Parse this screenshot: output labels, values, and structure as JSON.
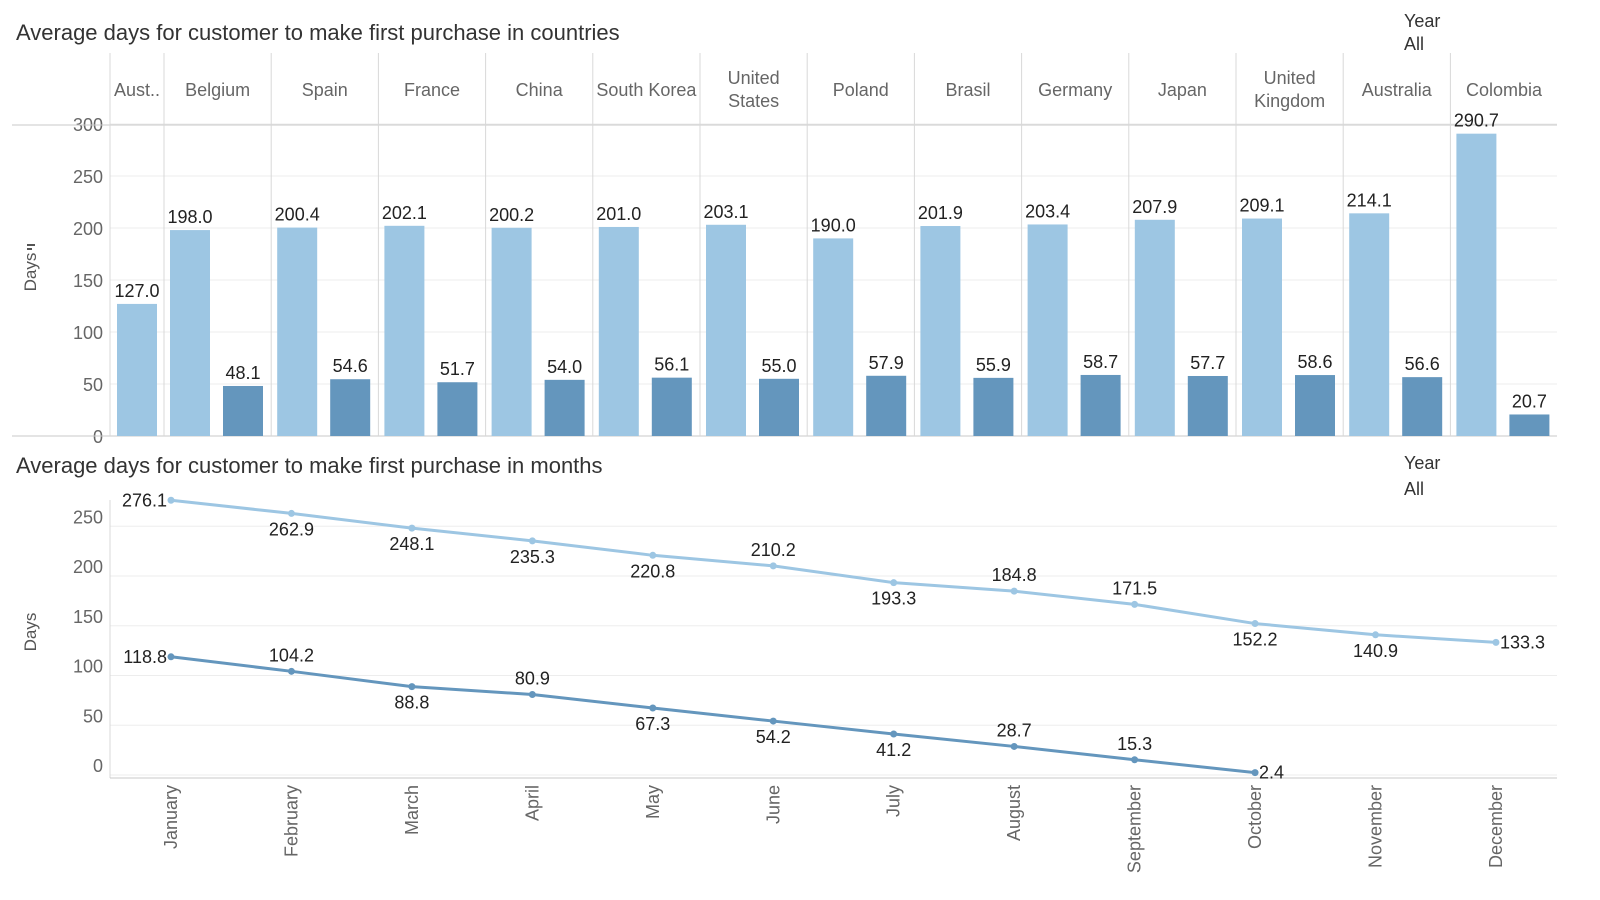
{
  "top_chart": {
    "title": "Average days for customer to make first purchase in countries",
    "filter": {
      "label": "Year",
      "value": "All"
    },
    "ylabel": "Days",
    "colors": {
      "light": "#9dc6e3",
      "dark": "#6496bd"
    }
  },
  "bottom_chart": {
    "title": "Average days for customer to make first purchase in months",
    "filter": {
      "label": "Year",
      "value": "All"
    },
    "ylabel": "Days",
    "colors": {
      "light": "#9dc6e3",
      "dark": "#6496bd"
    }
  },
  "chart_data": [
    {
      "type": "bar",
      "title": "Average days for customer to make first purchase in countries",
      "ylabel": "Days",
      "ylim": [
        0,
        300
      ],
      "yticks": [
        0,
        50,
        100,
        150,
        200,
        250,
        300
      ],
      "grid": true,
      "categories": [
        "Aust..",
        "Belgium",
        "Spain",
        "France",
        "China",
        "South Korea",
        "United States",
        "Poland",
        "Brasil",
        "Germany",
        "Japan",
        "United Kingdom",
        "Australia",
        "Colombia"
      ],
      "series": [
        {
          "values": [
            127.0,
            198.0,
            200.4,
            202.1,
            200.2,
            201.0,
            203.1,
            190.0,
            201.9,
            203.4,
            207.9,
            209.1,
            214.1,
            290.7
          ]
        },
        {
          "values": [
            null,
            48.1,
            54.6,
            51.7,
            54.0,
            56.1,
            55.0,
            57.9,
            55.9,
            58.7,
            57.7,
            58.6,
            56.6,
            20.7
          ]
        }
      ]
    },
    {
      "type": "line",
      "title": "Average days for customer to make first purchase in months",
      "ylabel": "Days",
      "ylim": [
        0,
        250
      ],
      "yticks": [
        0,
        50,
        100,
        150,
        200,
        250
      ],
      "grid": true,
      "x": [
        "January",
        "February",
        "March",
        "April",
        "May",
        "June",
        "July",
        "August",
        "September",
        "October",
        "November",
        "December"
      ],
      "series": [
        {
          "values": [
            276.1,
            262.9,
            248.1,
            235.3,
            220.8,
            210.2,
            193.3,
            184.8,
            171.5,
            152.2,
            140.9,
            133.3
          ]
        },
        {
          "values": [
            118.8,
            104.2,
            88.8,
            80.9,
            67.3,
            54.2,
            41.2,
            28.7,
            15.3,
            2.4,
            null,
            null
          ]
        }
      ]
    }
  ]
}
